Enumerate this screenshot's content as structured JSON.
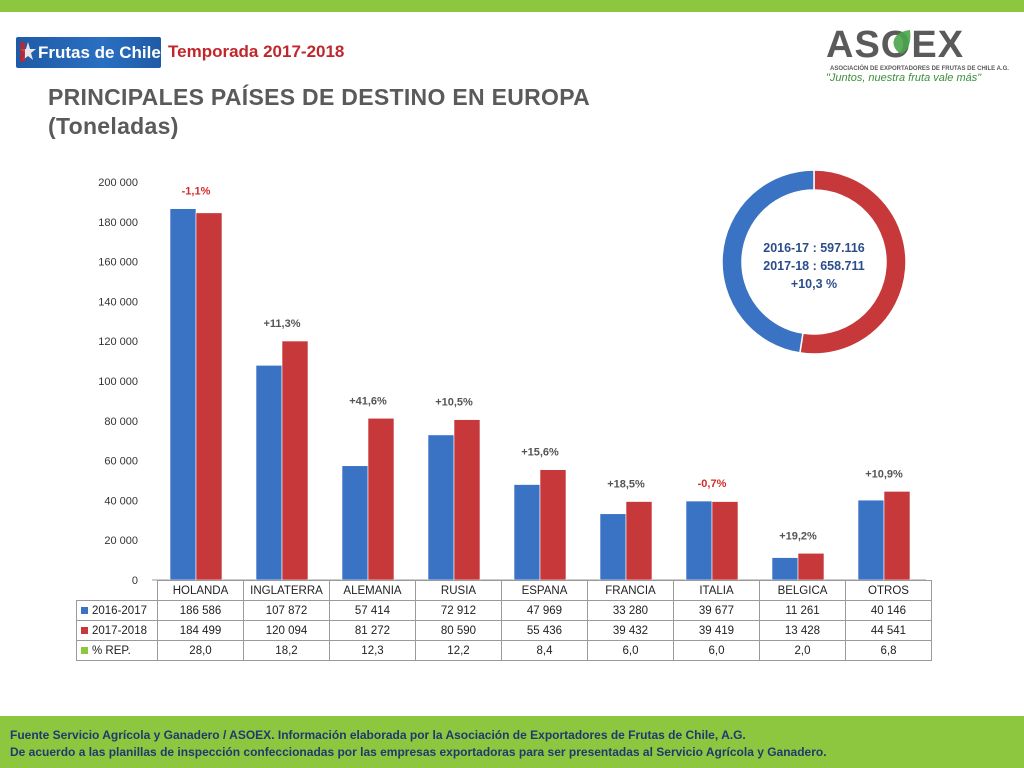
{
  "header": {
    "logo_text": "Frutas de Chile",
    "season": "Temporada 2017-2018",
    "title_line1": "PRINCIPALES PAÍSES DE DESTINO EN EUROPA",
    "title_line2": "(Toneladas)"
  },
  "asoex": {
    "name": "ASOEX",
    "subtitle": "ASOCIACIÓN DE EXPORTADORES DE FRUTAS DE CHILE A.G.",
    "slogan": "\"Juntos, nuestra fruta vale más\""
  },
  "colors": {
    "series_2016": "#3a72c4",
    "series_2017": "#c6383a",
    "rep": "#8dc63f",
    "positive_label": "#555555",
    "negative_label": "#d42a2a"
  },
  "chart_data": {
    "type": "bar",
    "categories": [
      "HOLANDA",
      "INGLATERRA",
      "ALEMANIA",
      "RUSIA",
      "ESPANA",
      "FRANCIA",
      "ITALIA",
      "BELGICA",
      "OTROS"
    ],
    "series": [
      {
        "name": "2016-2017",
        "values": [
          186586,
          107872,
          57414,
          72912,
          47969,
          33280,
          39677,
          11261,
          40146
        ]
      },
      {
        "name": "2017-2018",
        "values": [
          184499,
          120094,
          81272,
          80590,
          55436,
          39432,
          39419,
          13428,
          44541
        ]
      }
    ],
    "y_ticks": [
      "200 000",
      "180 000",
      "160 000",
      "140 000",
      "120 000",
      "100 000",
      "80 000",
      "60 000",
      "40 000",
      "20 000",
      "0"
    ],
    "ylim": [
      0,
      200000
    ],
    "change_labels": [
      "-1,1%",
      "+11,3%",
      "+41,6%",
      "+10,5%",
      "+15,6%",
      "+18,5%",
      "-0,7%",
      "+19,2%",
      "+10,9%"
    ],
    "change_negative": [
      true,
      false,
      false,
      false,
      false,
      false,
      true,
      false,
      false
    ],
    "table": {
      "rows": [
        {
          "label": "2016-2017",
          "values": [
            "186 586",
            "107 872",
            "57 414",
            "72 912",
            "47 969",
            "33 280",
            "39 677",
            "11 261",
            "40 146"
          ]
        },
        {
          "label": "2017-2018",
          "values": [
            "184 499",
            "120 094",
            "81 272",
            "80 590",
            "55 436",
            "39 432",
            "39 419",
            "13 428",
            "44 541"
          ]
        },
        {
          "label": "% REP.",
          "values": [
            "28,0",
            "18,2",
            "12,3",
            "12,2",
            "8,4",
            "6,0",
            "6,0",
            "2,0",
            "6,8"
          ]
        }
      ]
    },
    "donut": {
      "values": [
        597116,
        658711
      ],
      "line1": "2016-17 : 597.116",
      "line2": "2017-18 : 658.711",
      "line3": "+10,3 %"
    }
  },
  "footer": {
    "line1": "Fuente Servicio Agrícola y Ganadero / ASOEX. Información elaborada por la Asociación de Exportadores de  Frutas de Chile, A.G.",
    "line2": "De acuerdo a las planillas de inspección confeccionadas por las empresas exportadoras  para ser presentadas al Servicio Agrícola y Ganadero."
  }
}
